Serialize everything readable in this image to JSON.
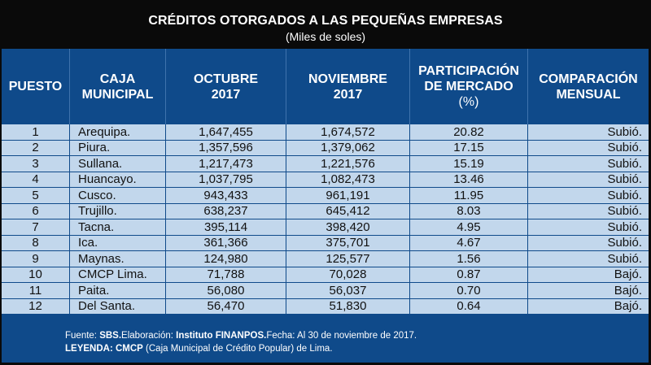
{
  "title": "CRÉDITOS OTORGADOS A LAS PEQUEÑAS EMPRESAS",
  "subtitle": "(Miles de soles)",
  "headers": {
    "puesto": "PUESTO",
    "caja_l1": "CAJA",
    "caja_l2": "MUNICIPAL",
    "oct_l1": "OCTUBRE",
    "oct_l2": "2017",
    "nov_l1": "NOVIEMBRE",
    "nov_l2": "2017",
    "part_l1": "PARTICIPACIÓN",
    "part_l2": "DE MERCADO",
    "part_l3": "(%)",
    "comp_l1": "COMPARACIÓN",
    "comp_l2": "MENSUAL"
  },
  "rows": [
    {
      "puesto": "1",
      "caja": "Arequipa.",
      "octubre": "1,647,455",
      "noviembre": "1,674,572",
      "participacion": "20.82",
      "comparacion": "Subió."
    },
    {
      "puesto": "2",
      "caja": "Piura.",
      "octubre": "1,357,596",
      "noviembre": "1,379,062",
      "participacion": "17.15",
      "comparacion": "Subió."
    },
    {
      "puesto": "3",
      "caja": "Sullana.",
      "octubre": "1,217,473",
      "noviembre": "1,221,576",
      "participacion": "15.19",
      "comparacion": "Subió."
    },
    {
      "puesto": "4",
      "caja": "Huancayo.",
      "octubre": "1,037,795",
      "noviembre": "1,082,473",
      "participacion": "13.46",
      "comparacion": "Subió."
    },
    {
      "puesto": "5",
      "caja": "Cusco.",
      "octubre": "943,433",
      "noviembre": "961,191",
      "participacion": "11.95",
      "comparacion": "Subió."
    },
    {
      "puesto": "6",
      "caja": "Trujillo.",
      "octubre": "638,237",
      "noviembre": "645,412",
      "participacion": "8.03",
      "comparacion": "Subió."
    },
    {
      "puesto": "7",
      "caja": "Tacna.",
      "octubre": "395,114",
      "noviembre": "398,420",
      "participacion": "4.95",
      "comparacion": "Subió."
    },
    {
      "puesto": "8",
      "caja": "Ica.",
      "octubre": "361,366",
      "noviembre": "375,701",
      "participacion": "4.67",
      "comparacion": "Subió."
    },
    {
      "puesto": "9",
      "caja": "Maynas.",
      "octubre": "124,980",
      "noviembre": "125,577",
      "participacion": "1.56",
      "comparacion": "Subió."
    },
    {
      "puesto": "10",
      "caja": "CMCP Lima.",
      "octubre": "71,788",
      "noviembre": "70,028",
      "participacion": "0.87",
      "comparacion": "Bajó."
    },
    {
      "puesto": "11",
      "caja": "Paita.",
      "octubre": "56,080",
      "noviembre": "56,037",
      "participacion": "0.70",
      "comparacion": "Bajó."
    },
    {
      "puesto": "12",
      "caja": "Del Santa.",
      "octubre": "56,470",
      "noviembre": "51,830",
      "participacion": "0.64",
      "comparacion": "Bajó."
    }
  ],
  "footer": {
    "fuente_label": "Fuente: ",
    "fuente_value": "SBS.",
    "elab_label": "Elaboración: ",
    "elab_value": "Instituto FINANPOS.",
    "fecha": "Fecha: Al 30 de noviembre de 2017.",
    "leyenda_label": "LEYENDA: CMCP",
    "leyenda_value": " (Caja Municipal de Crédito Popular) de Lima."
  },
  "colors": {
    "background": "#0a0a0a",
    "panel_blue": "#0f4a8a",
    "row_light_blue": "#c2d7ec",
    "text_white": "#ffffff"
  }
}
